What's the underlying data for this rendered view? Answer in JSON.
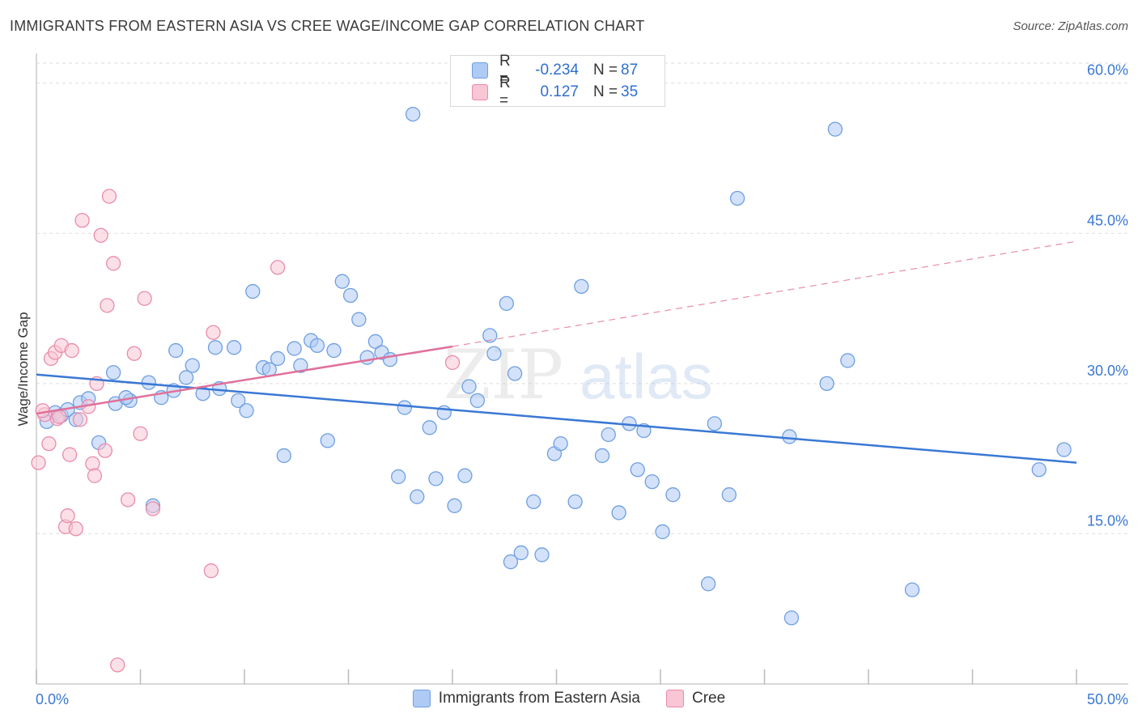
{
  "title": "IMMIGRANTS FROM EASTERN ASIA VS CREE WAGE/INCOME GAP CORRELATION CHART",
  "source": "Source: ZipAtlas.com",
  "watermark": {
    "part1": "ZIP",
    "part2": "atlas"
  },
  "legend": {
    "rows": [
      {
        "r_label": "R =",
        "r_value": "-0.234",
        "n_label": "N =",
        "n_value": "87",
        "fill": "#aecbf5",
        "stroke": "#6f9fe0"
      },
      {
        "r_label": "R =",
        "r_value": "0.127",
        "n_label": "N =",
        "n_value": "35",
        "fill": "#f9c6d6",
        "stroke": "#e98cab"
      }
    ]
  },
  "bottom_legend": [
    {
      "label": "Immigrants from Eastern Asia",
      "fill": "#aecbf5",
      "stroke": "#6f9fe0"
    },
    {
      "label": "Cree",
      "fill": "#f9c6d6",
      "stroke": "#e98cab"
    }
  ],
  "chart_data": {
    "type": "scatter",
    "title": "IMMIGRANTS FROM EASTERN ASIA VS CREE WAGE/INCOME GAP CORRELATION CHART",
    "xlabel": "",
    "ylabel": "Wage/Income Gap",
    "xlim": [
      0,
      50
    ],
    "ylim": [
      0,
      62
    ],
    "x_tick_labels": [
      "0.0%",
      "50.0%"
    ],
    "y_ticks": [
      15,
      30,
      45,
      60
    ],
    "y_tick_labels": [
      "15.0%",
      "30.0%",
      "45.0%",
      "60.0%"
    ],
    "colors": {
      "blue": "#3a78d4",
      "pink": "#e0709a",
      "axis_label": "#3a78d4",
      "grid": "#dddddd"
    },
    "series": [
      {
        "name": "Immigrants from Eastern Asia",
        "color": "#6f9fe0",
        "fill": "#aecbf5",
        "r": -0.234,
        "n": 87,
        "trend": {
          "x0": 0,
          "y0": 30.9,
          "x1": 50,
          "y1": 22.1
        },
        "points": [
          [
            0.5,
            26.2
          ],
          [
            0.9,
            27.1
          ],
          [
            1.2,
            26.8
          ],
          [
            1.5,
            27.4
          ],
          [
            1.9,
            26.4
          ],
          [
            2.1,
            28.1
          ],
          [
            2.5,
            28.5
          ],
          [
            3.0,
            24.1
          ],
          [
            3.8,
            28.0
          ],
          [
            3.7,
            31.1
          ],
          [
            4.5,
            28.3
          ],
          [
            4.3,
            28.6
          ],
          [
            5.4,
            30.1
          ],
          [
            5.6,
            17.8
          ],
          [
            6.0,
            28.6
          ],
          [
            6.6,
            29.3
          ],
          [
            6.7,
            33.3
          ],
          [
            7.2,
            30.6
          ],
          [
            7.5,
            31.8
          ],
          [
            8.0,
            29.0
          ],
          [
            8.6,
            33.6
          ],
          [
            8.8,
            29.5
          ],
          [
            9.5,
            33.6
          ],
          [
            9.7,
            28.3
          ],
          [
            10.1,
            27.3
          ],
          [
            10.4,
            39.2
          ],
          [
            10.9,
            31.6
          ],
          [
            11.2,
            31.4
          ],
          [
            11.6,
            32.5
          ],
          [
            11.9,
            22.8
          ],
          [
            12.4,
            33.5
          ],
          [
            12.7,
            31.8
          ],
          [
            13.2,
            34.3
          ],
          [
            13.5,
            33.8
          ],
          [
            14.0,
            24.3
          ],
          [
            14.3,
            33.3
          ],
          [
            14.7,
            40.2
          ],
          [
            15.1,
            38.8
          ],
          [
            15.5,
            36.4
          ],
          [
            15.9,
            32.6
          ],
          [
            16.3,
            34.2
          ],
          [
            16.6,
            33.1
          ],
          [
            17.0,
            32.4
          ],
          [
            17.4,
            20.7
          ],
          [
            17.7,
            27.6
          ],
          [
            18.1,
            56.9
          ],
          [
            18.3,
            18.7
          ],
          [
            18.9,
            25.6
          ],
          [
            19.2,
            20.5
          ],
          [
            19.6,
            27.1
          ],
          [
            20.1,
            17.8
          ],
          [
            20.6,
            20.8
          ],
          [
            20.8,
            29.7
          ],
          [
            21.2,
            28.3
          ],
          [
            21.8,
            34.8
          ],
          [
            22.0,
            33.0
          ],
          [
            22.6,
            38.0
          ],
          [
            22.8,
            12.2
          ],
          [
            23.0,
            31.0
          ],
          [
            23.3,
            13.1
          ],
          [
            23.9,
            18.2
          ],
          [
            24.3,
            12.9
          ],
          [
            24.9,
            23.0
          ],
          [
            25.2,
            24.0
          ],
          [
            25.9,
            18.2
          ],
          [
            26.2,
            39.7
          ],
          [
            27.2,
            22.8
          ],
          [
            27.5,
            24.9
          ],
          [
            28.0,
            17.1
          ],
          [
            28.5,
            26.0
          ],
          [
            28.9,
            21.4
          ],
          [
            29.2,
            25.3
          ],
          [
            29.6,
            20.2
          ],
          [
            30.1,
            15.2
          ],
          [
            30.6,
            18.9
          ],
          [
            32.3,
            10.0
          ],
          [
            32.6,
            26.0
          ],
          [
            33.3,
            18.9
          ],
          [
            33.7,
            48.5
          ],
          [
            36.3,
            6.6
          ],
          [
            36.2,
            24.7
          ],
          [
            38.0,
            30.0
          ],
          [
            38.4,
            55.4
          ],
          [
            39.0,
            32.3
          ],
          [
            42.1,
            9.4
          ],
          [
            48.2,
            21.4
          ],
          [
            49.4,
            23.4
          ]
        ]
      },
      {
        "name": "Cree",
        "color": "#e98cab",
        "fill": "#f9c6d6",
        "r": 0.127,
        "n": 35,
        "trend": {
          "x0": 0,
          "y0": 27.0,
          "x1": 20,
          "y1": 33.7
        },
        "trend_dashed": {
          "x0": 20,
          "y0": 33.7,
          "x1": 50,
          "y1": 44.2
        },
        "points": [
          [
            0.1,
            22.1
          ],
          [
            0.4,
            26.9
          ],
          [
            0.6,
            24.0
          ],
          [
            0.7,
            32.5
          ],
          [
            0.9,
            33.1
          ],
          [
            1.0,
            26.5
          ],
          [
            1.2,
            33.8
          ],
          [
            1.4,
            15.7
          ],
          [
            1.5,
            16.8
          ],
          [
            1.6,
            22.9
          ],
          [
            1.7,
            33.3
          ],
          [
            1.9,
            15.5
          ],
          [
            2.1,
            26.4
          ],
          [
            2.2,
            46.3
          ],
          [
            2.5,
            27.7
          ],
          [
            2.7,
            22.0
          ],
          [
            2.8,
            20.8
          ],
          [
            2.9,
            30.0
          ],
          [
            3.1,
            44.8
          ],
          [
            3.3,
            23.3
          ],
          [
            3.4,
            37.8
          ],
          [
            3.5,
            48.7
          ],
          [
            3.7,
            42.0
          ],
          [
            3.9,
            1.9
          ],
          [
            4.4,
            18.4
          ],
          [
            4.7,
            33.0
          ],
          [
            5.0,
            25.0
          ],
          [
            5.2,
            38.5
          ],
          [
            5.6,
            17.5
          ],
          [
            8.4,
            11.3
          ],
          [
            8.5,
            35.1
          ],
          [
            11.6,
            41.6
          ],
          [
            20.0,
            32.1
          ],
          [
            0.3,
            27.3
          ],
          [
            1.1,
            26.7
          ]
        ]
      }
    ]
  }
}
